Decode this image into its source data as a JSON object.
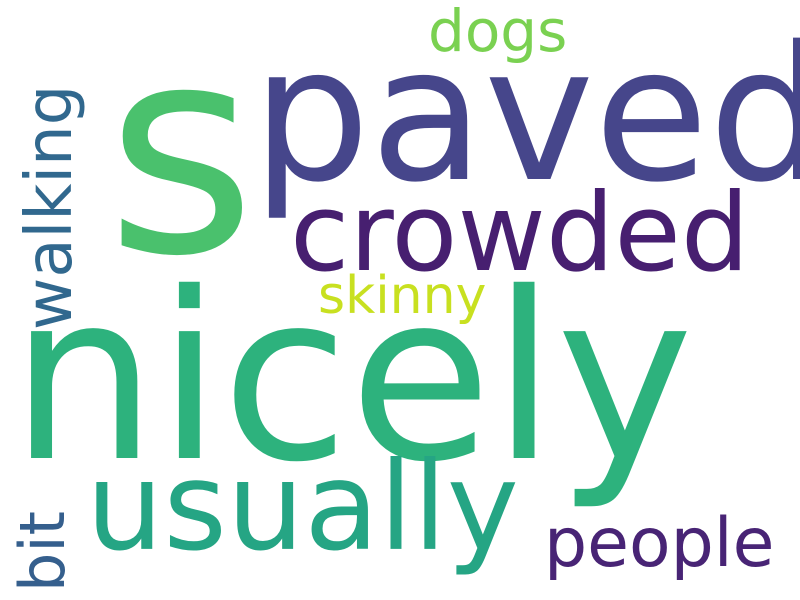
{
  "word_cloud": {
    "words": [
      {
        "text": "s",
        "color": "#4ac16d"
      },
      {
        "text": "paved",
        "color": "#46468b"
      },
      {
        "text": "nicely",
        "color": "#2db27d"
      },
      {
        "text": "crowded",
        "color": "#471f70"
      },
      {
        "text": "usually",
        "color": "#25a584"
      },
      {
        "text": "walking",
        "color": "#31688e"
      },
      {
        "text": "dogs",
        "color": "#7ad151"
      },
      {
        "text": "skinny",
        "color": "#c8e020"
      },
      {
        "text": "people",
        "color": "#482475"
      },
      {
        "text": "bit",
        "color": "#355f8d"
      }
    ]
  }
}
